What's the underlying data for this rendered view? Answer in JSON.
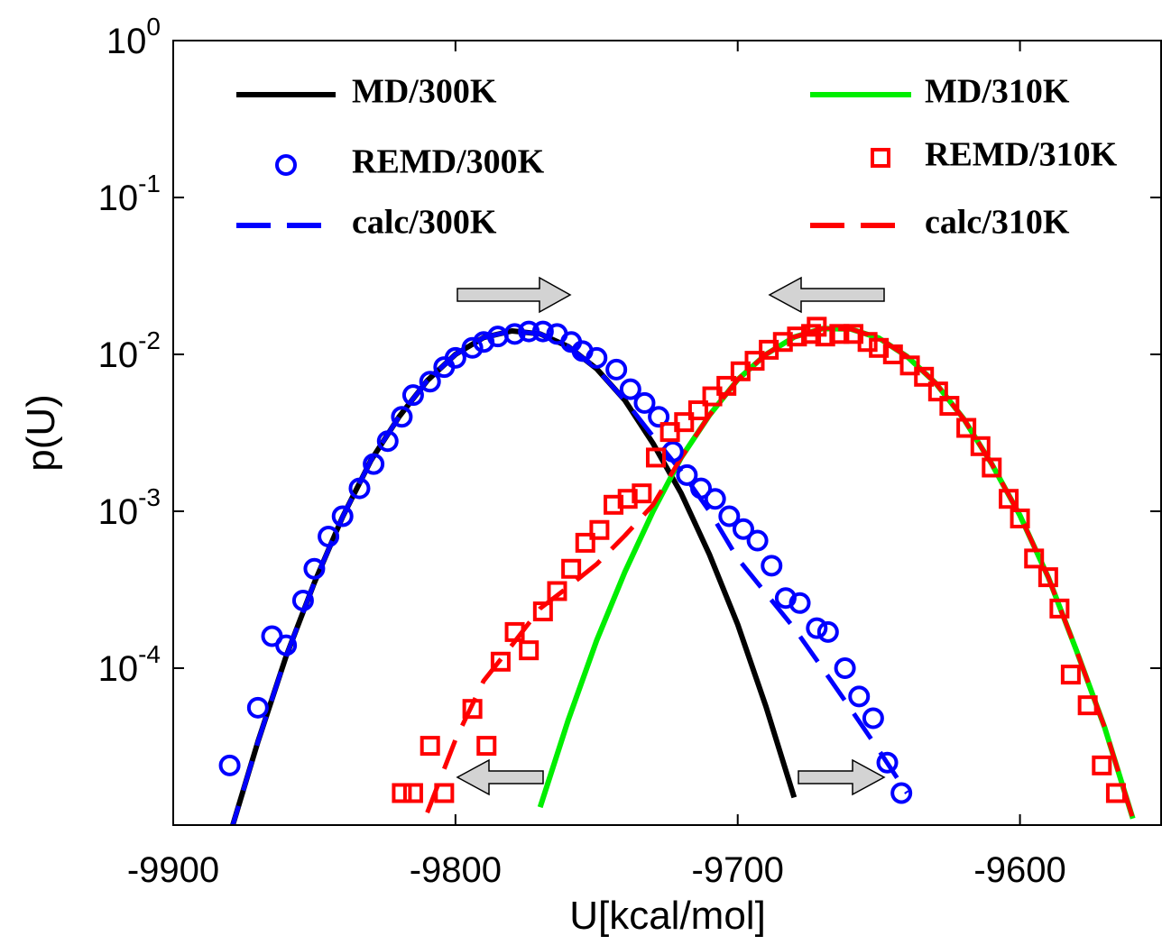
{
  "chart_data": {
    "type": "line",
    "xlabel": "U[kcal/mol]",
    "ylabel": "p(U)",
    "xlim": [
      -9900,
      -9550
    ],
    "xticks": [
      -9900,
      -9800,
      -9700,
      -9600
    ],
    "ylim": [
      1e-05,
      1
    ],
    "yscale": "log",
    "yticks": [
      {
        "value": 1,
        "label": "10^0"
      },
      {
        "value": 0.1,
        "label": "10^-1"
      },
      {
        "value": 0.01,
        "label": "10^-2"
      },
      {
        "value": 0.001,
        "label": "10^-3"
      },
      {
        "value": 0.0001,
        "label": "10^-4"
      }
    ],
    "series": [
      {
        "name": "MD/300K",
        "color": "#000000",
        "style": "solid",
        "x": [
          -9880,
          -9870,
          -9860,
          -9850,
          -9840,
          -9830,
          -9820,
          -9810,
          -9800,
          -9790,
          -9780,
          -9770,
          -9760,
          -9750,
          -9740,
          -9730,
          -9720,
          -9710,
          -9700,
          -9690,
          -9680
        ],
        "values": [
          8.6e-06,
          3.4e-05,
          0.000119,
          0.00035,
          0.00092,
          0.0021,
          0.004,
          0.0068,
          0.01,
          0.0128,
          0.0141,
          0.0135,
          0.0112,
          0.0081,
          0.0051,
          0.0027,
          0.0013,
          0.00053,
          0.00019,
          5.7e-05,
          1.5e-05
        ]
      },
      {
        "name": "REMD/300K",
        "color": "#0000ff",
        "style": "circle",
        "x": [
          -9880,
          -9870,
          -9865,
          -9860,
          -9854,
          -9850,
          -9845,
          -9840,
          -9834,
          -9829,
          -9824,
          -9819,
          -9815,
          -9809,
          -9804,
          -9800,
          -9794,
          -9790,
          -9785,
          -9779,
          -9774,
          -9769,
          -9764,
          -9759,
          -9755,
          -9750,
          -9743,
          -9738,
          -9733,
          -9728,
          -9723,
          -9718,
          -9713,
          -9708,
          -9703,
          -9698,
          -9693,
          -9688,
          -9683,
          -9678,
          -9672,
          -9668,
          -9662,
          -9657,
          -9652,
          -9647,
          -9642
        ],
        "values": [
          2.4e-05,
          5.6e-05,
          0.00016,
          0.00014,
          0.00027,
          0.00043,
          0.00069,
          0.00093,
          0.0014,
          0.002,
          0.0028,
          0.004,
          0.0055,
          0.0067,
          0.0083,
          0.0095,
          0.011,
          0.012,
          0.013,
          0.0135,
          0.014,
          0.014,
          0.0135,
          0.012,
          0.0105,
          0.0095,
          0.008,
          0.006,
          0.0049,
          0.004,
          0.0024,
          0.0017,
          0.0014,
          0.0012,
          0.00093,
          0.00077,
          0.00065,
          0.00045,
          0.00028,
          0.00026,
          0.00018,
          0.00017,
          0.0001,
          6.6e-05,
          4.8e-05,
          2.5e-05,
          1.6e-05
        ]
      },
      {
        "name": "calc/300K",
        "color": "#0000ff",
        "style": "dashed",
        "x": [
          -9880,
          -9870,
          -9860,
          -9850,
          -9840,
          -9830,
          -9820,
          -9810,
          -9800,
          -9790,
          -9780,
          -9770,
          -9760,
          -9750,
          -9740,
          -9730,
          -9720,
          -9710,
          -9700,
          -9690,
          -9680,
          -9670,
          -9660,
          -9650,
          -9640
        ],
        "values": [
          8.6e-06,
          3.4e-05,
          0.000119,
          0.00035,
          0.00092,
          0.0021,
          0.004,
          0.0068,
          0.01,
          0.0128,
          0.0141,
          0.0135,
          0.0112,
          0.0081,
          0.0051,
          0.003,
          0.0018,
          0.001,
          0.0005,
          0.0003,
          0.00018,
          0.0001,
          5.5e-05,
          3e-05,
          1.6e-05
        ]
      },
      {
        "name": "MD/310K",
        "color": "#00ee00",
        "style": "solid",
        "x": [
          -9770,
          -9760,
          -9750,
          -9740,
          -9730,
          -9720,
          -9710,
          -9700,
          -9690,
          -9680,
          -9670,
          -9660,
          -9650,
          -9640,
          -9630,
          -9620,
          -9610,
          -9600,
          -9590,
          -9580,
          -9570,
          -9560
        ],
        "values": [
          1.3e-05,
          4.7e-05,
          0.00015,
          0.00041,
          0.001,
          0.0022,
          0.0041,
          0.0069,
          0.01,
          0.0129,
          0.0146,
          0.0145,
          0.0127,
          0.0097,
          0.0066,
          0.0039,
          0.002,
          0.00094,
          0.00038,
          0.00013,
          4.2e-05,
          1.1e-05
        ]
      },
      {
        "name": "REMD/310K",
        "color": "#ff0000",
        "style": "square",
        "x": [
          -9819,
          -9815,
          -9809,
          -9804,
          -9794,
          -9789,
          -9784,
          -9779,
          -9774,
          -9769,
          -9764,
          -9759,
          -9754,
          -9749,
          -9744,
          -9739,
          -9734,
          -9729,
          -9724,
          -9719,
          -9714,
          -9709,
          -9704,
          -9699,
          -9694,
          -9689,
          -9684,
          -9679,
          -9674,
          -9672,
          -9669,
          -9664,
          -9659,
          -9654,
          -9650,
          -9645,
          -9639,
          -9634,
          -9629,
          -9625,
          -9619,
          -9614,
          -9610,
          -9604,
          -9600,
          -9595,
          -9590,
          -9586,
          -9582,
          -9576,
          -9571,
          -9566
        ],
        "values": [
          1.6e-05,
          1.6e-05,
          3.2e-05,
          1.6e-05,
          5.5e-05,
          3.2e-05,
          0.00011,
          0.00017,
          0.00013,
          0.00023,
          0.00031,
          0.00043,
          0.00063,
          0.00076,
          0.0011,
          0.0012,
          0.0013,
          0.0022,
          0.0032,
          0.0037,
          0.0044,
          0.0054,
          0.0063,
          0.0078,
          0.0091,
          0.0107,
          0.012,
          0.013,
          0.0135,
          0.015,
          0.013,
          0.0135,
          0.0135,
          0.012,
          0.011,
          0.01,
          0.0085,
          0.0072,
          0.0058,
          0.0047,
          0.0034,
          0.0026,
          0.0019,
          0.0012,
          0.0009,
          0.0005,
          0.00038,
          0.00024,
          9.1e-05,
          5.8e-05,
          2.4e-05,
          1.6e-05
        ]
      },
      {
        "name": "calc/310K",
        "color": "#ff0000",
        "style": "dashed",
        "x": [
          -9810,
          -9800,
          -9790,
          -9780,
          -9770,
          -9760,
          -9750,
          -9740,
          -9730,
          -9720,
          -9710,
          -9700,
          -9690,
          -9680,
          -9670,
          -9660,
          -9650,
          -9640,
          -9630,
          -9620,
          -9610,
          -9600,
          -9590,
          -9580,
          -9570,
          -9560
        ],
        "values": [
          1.2e-05,
          3.5e-05,
          8.3e-05,
          0.00014,
          0.00024,
          0.00033,
          0.00046,
          0.0007,
          0.0011,
          0.0022,
          0.0041,
          0.0069,
          0.01,
          0.0129,
          0.0146,
          0.0145,
          0.0127,
          0.0097,
          0.0066,
          0.0039,
          0.002,
          0.00094,
          0.00038,
          0.00013,
          4.2e-05,
          1.1e-05
        ]
      }
    ]
  }
}
